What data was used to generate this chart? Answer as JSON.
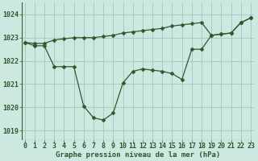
{
  "xlabel": "Graphe pression niveau de la mer (hPa)",
  "bg_color": "#cce8e0",
  "grid_color": "#a0c8b8",
  "line_color": "#2d5a2d",
  "marker_color": "#2d5a2d",
  "ylim": [
    1018.6,
    1024.5
  ],
  "yticks": [
    1019,
    1020,
    1021,
    1022,
    1023,
    1024
  ],
  "xticks": [
    0,
    1,
    2,
    3,
    4,
    5,
    6,
    7,
    8,
    9,
    10,
    11,
    12,
    13,
    14,
    15,
    16,
    17,
    18,
    19,
    20,
    21,
    22,
    23
  ],
  "series1_x": [
    0,
    1,
    2,
    3,
    4,
    5,
    6,
    7,
    8,
    9,
    10,
    11,
    12,
    13,
    14,
    15,
    16,
    17,
    18,
    19,
    20,
    21,
    22,
    23
  ],
  "series1_y": [
    1022.8,
    1022.75,
    1022.75,
    1022.9,
    1022.95,
    1023.0,
    1023.0,
    1023.0,
    1023.05,
    1023.1,
    1023.2,
    1023.25,
    1023.3,
    1023.35,
    1023.4,
    1023.5,
    1023.55,
    1023.6,
    1023.65,
    1023.1,
    1023.15,
    1023.2,
    1023.65,
    1023.85
  ],
  "series2_x": [
    0,
    1,
    2,
    3,
    4,
    5,
    6,
    7,
    8,
    9,
    10,
    11,
    12,
    13,
    14,
    15,
    16,
    17,
    18,
    19,
    20,
    21,
    22,
    23
  ],
  "series2_y": [
    1022.8,
    1022.65,
    1022.65,
    1021.75,
    1021.75,
    1021.75,
    1020.05,
    1019.55,
    1019.45,
    1019.75,
    1021.05,
    1021.55,
    1021.65,
    1021.6,
    1021.55,
    1021.45,
    1021.2,
    1022.5,
    1022.5,
    1023.1,
    1023.15,
    1023.2,
    1023.65,
    1023.85
  ],
  "marker_size": 2.5,
  "lw": 0.9,
  "xlabel_fontsize": 6.5,
  "tick_fontsize": 6.0,
  "xlabel_color": "#2d5a2d",
  "tick_color": "#2d5a2d"
}
